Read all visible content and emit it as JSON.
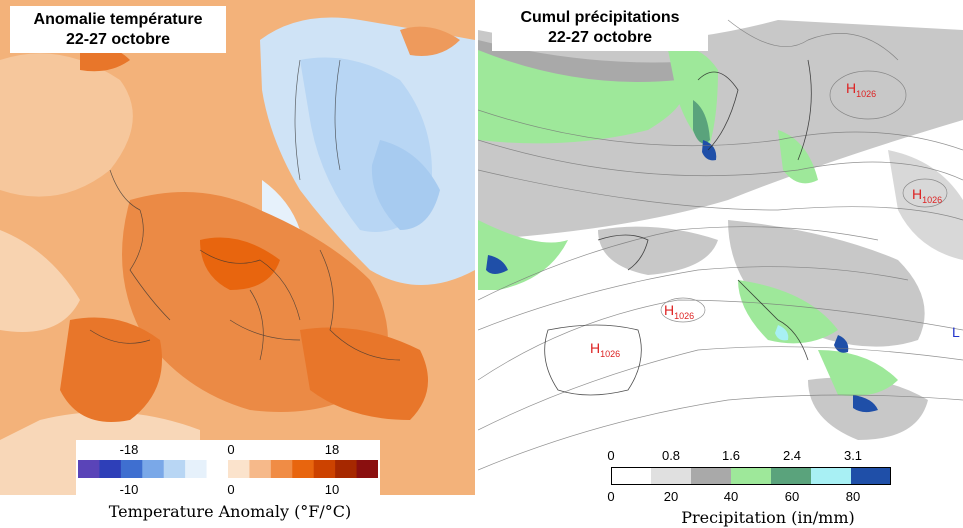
{
  "left_panel": {
    "title_line1": "Anomalie température",
    "title_line2": "22-27 octobre",
    "legend": {
      "top_ticks": [
        "-18",
        "0",
        "18"
      ],
      "bottom_ticks": [
        "-10",
        "0",
        "10"
      ],
      "caption": "Temperature Anomaly (°F/°C)",
      "colors": [
        "#5a44b8",
        "#2e3fb8",
        "#3f6fd0",
        "#7aa8e8",
        "#b8d6f4",
        "#e6f1fb",
        "#ffffff",
        "#fbe3cc",
        "#f6b98a",
        "#f08c45",
        "#e8650e",
        "#cc4200",
        "#a62800",
        "#8a0f0f"
      ]
    }
  },
  "right_panel": {
    "title_line1": "Cumul précipitations",
    "title_line2": "22-27 octobre",
    "legend": {
      "top_ticks": [
        "0",
        "0.8",
        "1.6",
        "2.4",
        "3.1"
      ],
      "bottom_ticks": [
        "0",
        "20",
        "40",
        "60",
        "80"
      ],
      "caption": "Precipitation (in/mm)",
      "colors": [
        "#ffffff",
        "#e0e0e0",
        "#a9a9a9",
        "#9ee89a",
        "#5aa37c",
        "#a8f0f4",
        "#1f4fa8"
      ]
    },
    "pressure_centers": [
      {
        "label": "H",
        "value": "1026",
        "type": "high"
      },
      {
        "label": "H",
        "value": "1026",
        "type": "high"
      },
      {
        "label": "H",
        "value": "1026",
        "type": "high"
      },
      {
        "label": "H",
        "value": "1026",
        "type": "high"
      },
      {
        "label": "L",
        "value": "",
        "type": "low"
      }
    ]
  }
}
